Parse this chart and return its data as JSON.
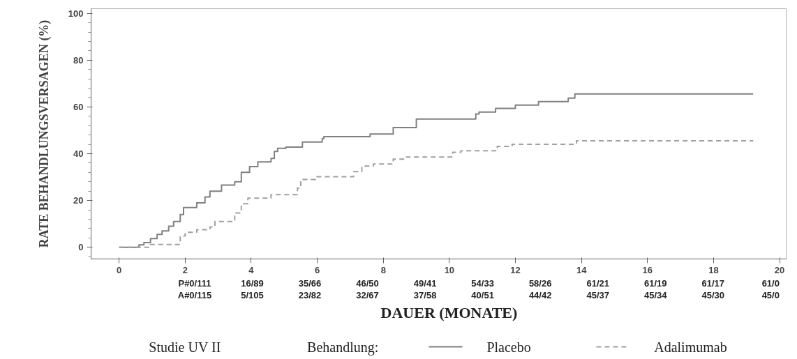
{
  "chart_data": {
    "type": "step",
    "ylabel": "RATE BEHANDLUNGSVERSAGEN (%)",
    "xlabel": "DAUER (MONATE)",
    "legend_title": "Behandlung:",
    "legend": "bottom",
    "xlim": [
      -0.85,
      20.2
    ],
    "ylim": [
      -5,
      102
    ],
    "xticks": [
      0,
      2,
      4,
      6,
      8,
      10,
      12,
      14,
      16,
      18,
      20
    ],
    "yticks": [
      0,
      20,
      40,
      60,
      80,
      100
    ],
    "grid": false,
    "series": [
      {
        "name": "Placebo",
        "color": "#808080",
        "line_style": "solid",
        "x": [
          0,
          0.6,
          0.75,
          0.95,
          1.15,
          1.3,
          1.5,
          1.65,
          1.85,
          1.95,
          2.35,
          2.6,
          2.75,
          3.1,
          3.5,
          3.7,
          3.95,
          4.2,
          4.6,
          4.7,
          4.8,
          5.05,
          5.55,
          6.15,
          6.2,
          7.6,
          8.3,
          9.0,
          10.8,
          10.9,
          11.4,
          12.0,
          12.7,
          13.6,
          13.8,
          19.2
        ],
        "values": [
          0,
          1,
          2,
          3.7,
          5.5,
          7,
          9,
          11,
          14,
          17,
          19,
          21.5,
          24,
          26.6,
          28,
          32,
          34.5,
          36.5,
          38,
          41,
          42.3,
          42.8,
          45,
          46.5,
          47.3,
          48.4,
          51.2,
          54.8,
          57,
          57.8,
          59.4,
          60.8,
          62.3,
          63.8,
          65.6,
          65.6
        ]
      },
      {
        "name": "Adalimumab",
        "color": "#a0a0a0",
        "line_style": "dashed",
        "x": [
          0,
          0.95,
          1.85,
          2.0,
          2.35,
          2.75,
          2.9,
          3.5,
          3.7,
          3.9,
          4.6,
          5.4,
          5.5,
          5.95,
          7.1,
          7.35,
          7.7,
          8.3,
          8.7,
          10.1,
          10.35,
          11.45,
          11.9,
          13.85,
          19.2
        ],
        "values": [
          0,
          1.2,
          4.8,
          6.4,
          7.5,
          8.7,
          11,
          14.7,
          18.6,
          21,
          22.5,
          25.3,
          29,
          30.2,
          32.3,
          34.7,
          35.6,
          37.7,
          38.6,
          40.6,
          41.3,
          43.1,
          44,
          45.5,
          45.5
        ]
      }
    ],
    "annotations": [
      "P#0/111",
      "16/89",
      "35/66",
      "46/50",
      "49/41",
      "54/33",
      "58/26",
      "61/21",
      "61/19",
      "61/17",
      "61/0",
      "A#0/115",
      "5/105",
      "23/82",
      "32/67",
      "37/58",
      "40/51",
      "44/42",
      "45/37",
      "45/34",
      "45/30",
      "45/0",
      "Studie UV II"
    ]
  }
}
